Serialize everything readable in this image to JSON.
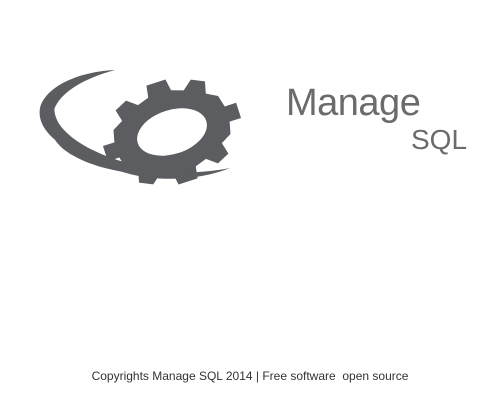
{
  "app": {
    "title_line1": "Manage",
    "title_line2": "SQL"
  },
  "logo": {
    "icon": "gear-icon",
    "color": "#5b5d60"
  },
  "footer": {
    "copyright": "Copyrights Manage SQL 2014 | Free software  open source"
  },
  "colors": {
    "background": "#ffffff",
    "brand_text": "#6b6b6b",
    "footer_text": "#333333"
  }
}
